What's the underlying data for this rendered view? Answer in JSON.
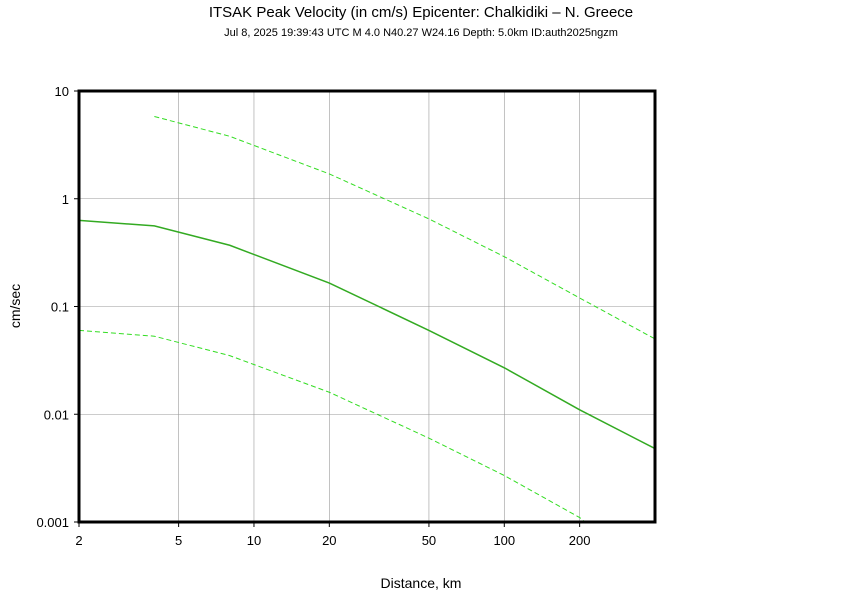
{
  "chart_data": {
    "type": "line",
    "title": "ITSAK Peak Velocity (in cm/s) Epicenter: Chalkidiki – N. Greece",
    "subtitle": "Jul  8, 2025 19:39:43 UTC   M 4.0   N40.27 W24.16   Depth: 5.0km   ID:auth2025ngzm",
    "x_label": "Distance, km",
    "y_label": "cm/sec",
    "log_x": true,
    "log_y": true,
    "grid": true,
    "xlim": [
      2,
      400
    ],
    "ylim": [
      0.001,
      10
    ],
    "xticks": [
      2,
      5,
      10,
      20,
      50,
      100,
      200
    ],
    "yticks": [
      0.001,
      0.01,
      0.1,
      1,
      10
    ],
    "series": [
      {
        "color": "#33aa22",
        "dashed": false,
        "x": [
          2,
          4,
          8,
          20,
          50,
          100,
          200,
          400
        ],
        "values": [
          0.63,
          0.56,
          0.37,
          0.165,
          0.06,
          0.027,
          0.011,
          0.0048
        ]
      },
      {
        "color": "#33dd22",
        "dashed": true,
        "x": [
          4,
          8,
          20,
          50,
          100,
          200,
          400
        ],
        "values": [
          5.8,
          3.8,
          1.7,
          0.65,
          0.29,
          0.12,
          0.05
        ]
      },
      {
        "color": "#33dd22",
        "dashed": true,
        "x": [
          2,
          4,
          8,
          20,
          50,
          100,
          200,
          210
        ],
        "values": [
          0.06,
          0.053,
          0.035,
          0.016,
          0.006,
          0.0027,
          0.0011,
          0.001
        ]
      }
    ]
  }
}
